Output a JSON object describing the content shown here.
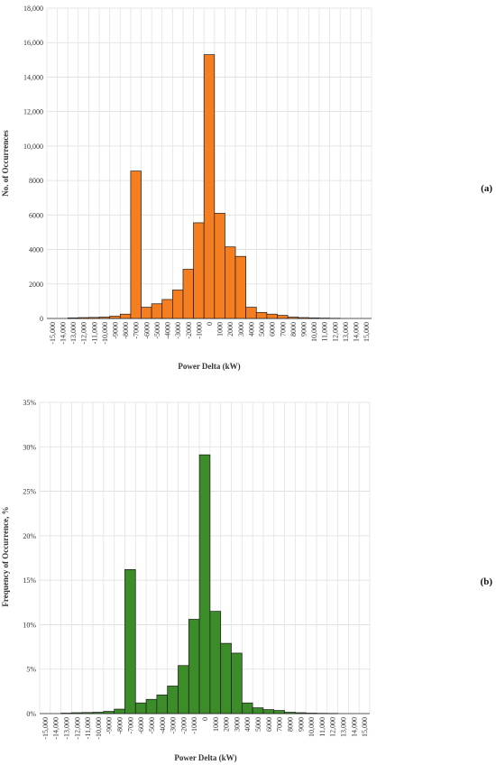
{
  "chart_data": [
    {
      "type": "bar",
      "panel_label": "(a)",
      "xlabel": "Power Delta (kW)",
      "ylabel": "No. of Occurrences",
      "ylim": [
        0,
        18000
      ],
      "y_ticks": [
        "0",
        "2000",
        "4000",
        "6000",
        "8000",
        "10,000",
        "12,000",
        "14,000",
        "16,000",
        "18,000"
      ],
      "categories": [
        "-15,000",
        "-14,000",
        "-13,000",
        "-12,000",
        "-11,000",
        "-10,000",
        "-9000",
        "-8000",
        "-7000",
        "-6000",
        "-5000",
        "-4000",
        "-3000",
        "-2000",
        "-1000",
        "0",
        "1000",
        "2000",
        "3000",
        "4000",
        "5000",
        "6000",
        "7000",
        "8000",
        "9000",
        "10,000",
        "11,000",
        "12,000",
        "13,000",
        "14,000",
        "15,000"
      ],
      "values": [
        0,
        0,
        30,
        50,
        60,
        80,
        130,
        250,
        8550,
        650,
        850,
        1100,
        1650,
        2850,
        5550,
        15300,
        6100,
        4150,
        3600,
        650,
        350,
        250,
        180,
        80,
        50,
        30,
        20,
        10,
        0,
        0,
        0
      ],
      "bar_color": "#f57f20",
      "grid": true
    },
    {
      "type": "bar",
      "panel_label": "(b)",
      "xlabel": "Power Delta (kW)",
      "ylabel": "Frequency of Occurrence, %",
      "ylim": [
        0,
        35
      ],
      "y_ticks": [
        "0%",
        "5%",
        "10%",
        "15%",
        "20%",
        "25%",
        "30%",
        "35%"
      ],
      "categories": [
        "-15,000",
        "-14,000",
        "-13,000",
        "-12,000",
        "-11,000",
        "-10,000",
        "-9000",
        "-8000",
        "-7000",
        "-6000",
        "-5000",
        "-4000",
        "-3000",
        "-2000",
        "-1000",
        "0",
        "1000",
        "2000",
        "3000",
        "4000",
        "5000",
        "6000",
        "7000",
        "8000",
        "9000",
        "10,000",
        "11,000",
        "12,000",
        "13,000",
        "14,000",
        "15,000"
      ],
      "values": [
        0,
        0,
        0.05,
        0.1,
        0.12,
        0.15,
        0.25,
        0.5,
        16.2,
        1.2,
        1.6,
        2.1,
        3.1,
        5.4,
        10.6,
        29.1,
        11.5,
        7.9,
        6.8,
        1.2,
        0.65,
        0.45,
        0.35,
        0.15,
        0.1,
        0.05,
        0.03,
        0.02,
        0,
        0,
        0
      ],
      "bar_color": "#3d8c2a",
      "grid": true
    }
  ]
}
